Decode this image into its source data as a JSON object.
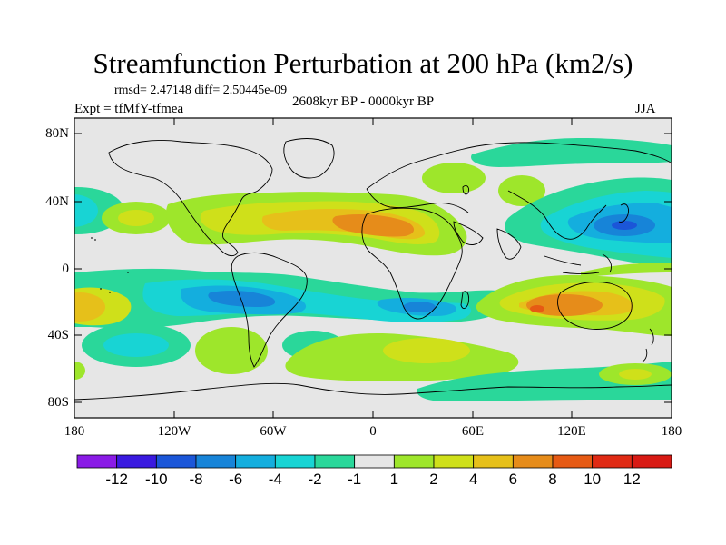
{
  "title": "Streamfunction Perturbation at 200 hPa (km2/s)",
  "stats": "rmsd= 2.47148 diff= 2.50445e-09",
  "experiment": "Expt = tfMfY-tfmea",
  "period": "2608kyr BP - 0000kyr BP",
  "season": "JJA",
  "y_ticks": [
    "80N",
    "40N",
    "0",
    "40S",
    "80S"
  ],
  "x_ticks": [
    "180",
    "120W",
    "60W",
    "0",
    "60E",
    "120E",
    "180"
  ],
  "colorbar": {
    "labels": [
      "-12",
      "-10",
      "-8",
      "-6",
      "-4",
      "-2",
      "-1",
      "1",
      "2",
      "4",
      "6",
      "8",
      "10",
      "12"
    ],
    "colors": [
      "#8a1be6",
      "#3a1ae0",
      "#1b56d8",
      "#1784d8",
      "#14aede",
      "#18d4d4",
      "#2ad79a",
      "#e6e6e6",
      "#9ee62b",
      "#cfe01a",
      "#e6c01a",
      "#e68c1a",
      "#e65a14",
      "#e02a14",
      "#d81a14"
    ]
  },
  "map_data": {
    "lon_range": [
      -180,
      180
    ],
    "lat_range": [
      -90,
      90
    ],
    "background_color": "#e6e6e6",
    "features": [
      {
        "name": "north-pacific-east-positive",
        "lon": -170,
        "lat": 35,
        "color": "#2ad79a"
      },
      {
        "name": "north-atlantic-positive-ring",
        "lon": -40,
        "lat": 32,
        "color": "#9ee62b"
      },
      {
        "name": "north-atlantic-max",
        "lon": -10,
        "lat": 25,
        "color": "#e6c01a"
      },
      {
        "name": "west-pacific-negative",
        "lon": 150,
        "lat": 25,
        "color": "#1784d8"
      },
      {
        "name": "south-pacific-negative",
        "lon": -75,
        "lat": -22,
        "color": "#1784d8"
      },
      {
        "name": "south-atlantic-negative",
        "lon": 10,
        "lat": -27,
        "color": "#14aede"
      },
      {
        "name": "australia-positive",
        "lon": 100,
        "lat": -27,
        "color": "#e68c1a"
      },
      {
        "name": "south-pacific-west-positive",
        "lon": -175,
        "lat": -25,
        "color": "#e6c01a"
      },
      {
        "name": "southern-ocean-positive",
        "lon": 30,
        "lat": -53,
        "color": "#cfe01a"
      }
    ]
  }
}
